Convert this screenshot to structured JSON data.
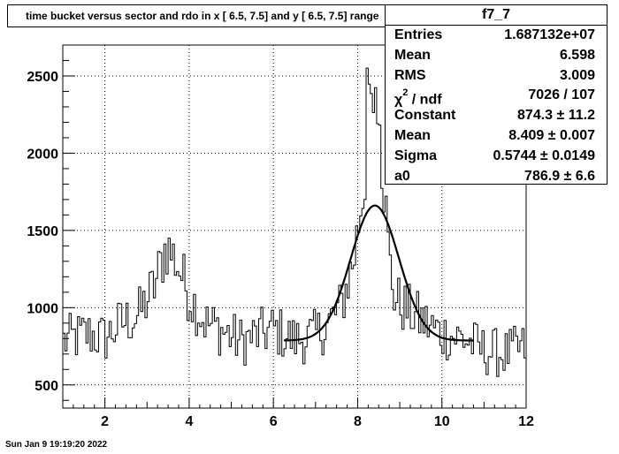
{
  "title": "time bucket versus sector and rdo in x [  6.5,  7.5] and y [  6.5,  7.5] range",
  "stats": {
    "name": "f7_7",
    "rows": [
      {
        "label": "Entries",
        "value": "1.687132e+07"
      },
      {
        "label": "Mean",
        "value": "6.598"
      },
      {
        "label": "RMS",
        "value": "3.009"
      },
      {
        "label_prefix": "χ",
        "label_sup": "2",
        "label_suffix": " / ndf",
        "value": "7026 / 107"
      },
      {
        "label": "Constant",
        "value": "874.3 ± 11.2"
      },
      {
        "label": "Mean",
        "value": "8.409 ± 0.007"
      },
      {
        "label": "Sigma",
        "value": "0.5744 ± 0.0149"
      },
      {
        "label": "a0",
        "value": "786.9 ± 6.6"
      }
    ]
  },
  "timestamp": "Sun Jan  9 19:19:20 2022",
  "chart_data": {
    "type": "line",
    "xlim": [
      1,
      12
    ],
    "ylim": [
      350,
      2700
    ],
    "xticks": [
      2,
      4,
      6,
      8,
      10,
      12
    ],
    "yticks": [
      500,
      1000,
      1500,
      2000,
      2500
    ],
    "grid": true,
    "histogram": {
      "points": [
        [
          1.0,
          780
        ],
        [
          1.6,
          830
        ],
        [
          2.0,
          800
        ],
        [
          2.4,
          900
        ],
        [
          2.8,
          950
        ],
        [
          3.2,
          1150
        ],
        [
          3.45,
          1400
        ],
        [
          3.7,
          1300
        ],
        [
          4.0,
          1080
        ],
        [
          4.4,
          900
        ],
        [
          4.8,
          850
        ],
        [
          5.2,
          780
        ],
        [
          5.6,
          820
        ],
        [
          6.0,
          860
        ],
        [
          6.5,
          790
        ],
        [
          7.0,
          820
        ],
        [
          7.3,
          900
        ],
        [
          7.6,
          1000
        ],
        [
          7.9,
          1300
        ],
        [
          8.1,
          1700
        ],
        [
          8.3,
          2200
        ],
        [
          8.45,
          2350
        ],
        [
          8.6,
          1900
        ],
        [
          8.75,
          1300
        ],
        [
          8.9,
          1050
        ],
        [
          9.2,
          980
        ],
        [
          9.6,
          900
        ],
        [
          10.0,
          830
        ],
        [
          10.5,
          800
        ],
        [
          11.0,
          720
        ],
        [
          11.5,
          700
        ],
        [
          12.0,
          740
        ]
      ],
      "noise": 260
    },
    "fit": {
      "function": "gaus+pol0",
      "constant": 874.3,
      "mean": 8.409,
      "sigma": 0.5744,
      "a0": 786.9,
      "range": [
        6.25,
        10.75
      ]
    }
  }
}
